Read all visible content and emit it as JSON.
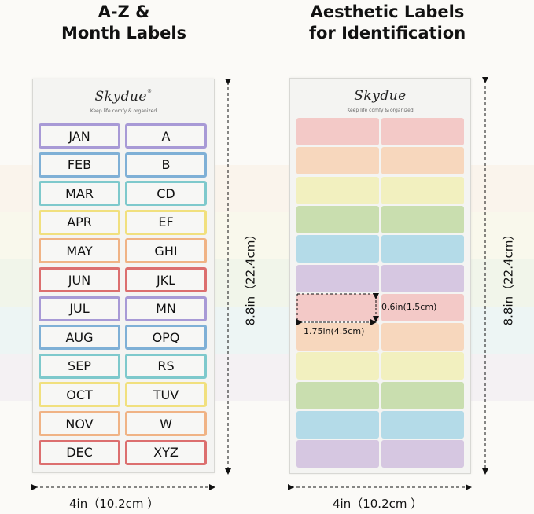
{
  "left_panel": {
    "heading_line1": "A-Z &",
    "heading_line2": "Month Labels",
    "brand": "Skydue",
    "brand_mark": "®",
    "tagline": "Keep life comfy & organized",
    "labels": [
      {
        "left": "JAN",
        "right": "A",
        "color": "#a89ad6"
      },
      {
        "left": "FEB",
        "right": "B",
        "color": "#7fb0d6"
      },
      {
        "left": "MAR",
        "right": "CD",
        "color": "#7ec9cc"
      },
      {
        "left": "APR",
        "right": "EF",
        "color": "#f1e07e"
      },
      {
        "left": "MAY",
        "right": "GHI",
        "color": "#f0b385"
      },
      {
        "left": "JUN",
        "right": "JKL",
        "color": "#dc6f6f"
      },
      {
        "left": "JUL",
        "right": "MN",
        "color": "#a89ad6"
      },
      {
        "left": "AUG",
        "right": "OPQ",
        "color": "#7fb0d6"
      },
      {
        "left": "SEP",
        "right": "RS",
        "color": "#7ec9cc"
      },
      {
        "left": "OCT",
        "right": "TUV",
        "color": "#f1e07e"
      },
      {
        "left": "NOV",
        "right": "W",
        "color": "#f0b385"
      },
      {
        "left": "DEC",
        "right": "XYZ",
        "color": "#dc6f6f"
      }
    ],
    "width_label": "4in（10.2cm ）",
    "height_label": "8.8in（22.4cm）"
  },
  "right_panel": {
    "heading_line1": "Aesthetic Labels",
    "heading_line2": "for Identification",
    "brand": "Skydue",
    "tagline": "Keep life comfy & organized",
    "row_colors": [
      "#f3c9c7",
      "#f7d7bd",
      "#f2f0bf",
      "#c9deaf",
      "#b4dbe8",
      "#d6c7e1",
      "#f3c9c7",
      "#f7d7bd",
      "#f2f0bf",
      "#c9deaf",
      "#b4dbe8",
      "#d6c7e1"
    ],
    "label_height": "0.6in(1.5cm)",
    "label_width": "1.75in(4.5cm)",
    "width_label": "4in（10.2cm ）",
    "height_label": "8.8in（22.4cm）"
  }
}
